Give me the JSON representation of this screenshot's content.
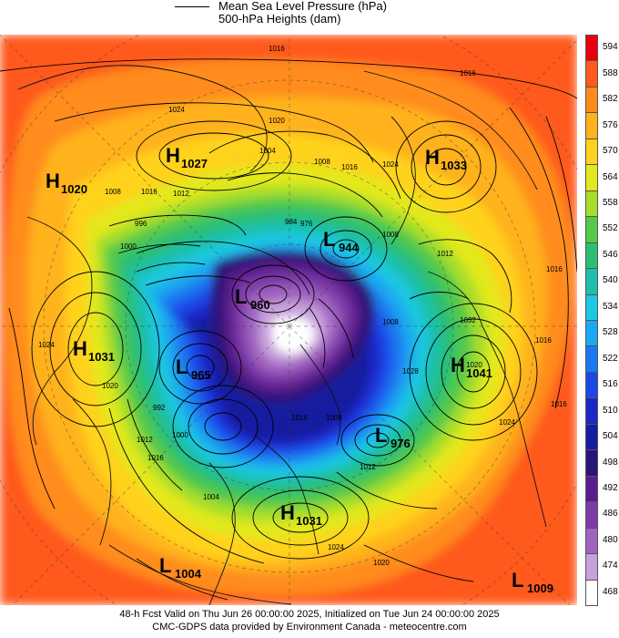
{
  "header": {
    "title_line1": "Mean Sea Level Pressure (hPa)",
    "title_line2": "500-hPa Heights (dam)"
  },
  "footer": {
    "line1": "48-h Fcst Valid on Thu Jun 26 00:00:00 2025, Initialized on Tue Jun 24 00:00:00 2025",
    "line2": "CMC-GDPS data provided by Environment Canada - meteocentre.com"
  },
  "colorbar": {
    "unit": "dam",
    "levels": [
      {
        "label": "594",
        "color": "#e8000b"
      },
      {
        "label": "588",
        "color": "#ff5a1e"
      },
      {
        "label": "582",
        "color": "#ff8c1a"
      },
      {
        "label": "576",
        "color": "#ffb21a"
      },
      {
        "label": "570",
        "color": "#ffd21e"
      },
      {
        "label": "564",
        "color": "#e3e81e"
      },
      {
        "label": "558",
        "color": "#a6de2a"
      },
      {
        "label": "552",
        "color": "#55c94a"
      },
      {
        "label": "546",
        "color": "#2bbf73"
      },
      {
        "label": "540",
        "color": "#1dc0aa"
      },
      {
        "label": "534",
        "color": "#1ec8e0"
      },
      {
        "label": "528",
        "color": "#1aa8f0"
      },
      {
        "label": "522",
        "color": "#1a78f0"
      },
      {
        "label": "516",
        "color": "#1a48e8"
      },
      {
        "label": "510",
        "color": "#1a28c8"
      },
      {
        "label": "504",
        "color": "#141ea0"
      },
      {
        "label": "498",
        "color": "#2a1478"
      },
      {
        "label": "492",
        "color": "#5a1e8c"
      },
      {
        "label": "486",
        "color": "#7e3aa8"
      },
      {
        "label": "480",
        "color": "#a064c0"
      },
      {
        "label": "474",
        "color": "#c8a0dc"
      },
      {
        "label": "468",
        "color": "#ffffff"
      }
    ]
  },
  "systems": [
    {
      "type": "H",
      "value": "1027"
    },
    {
      "type": "H",
      "value": "1020"
    },
    {
      "type": "H",
      "value": "1033"
    },
    {
      "type": "L",
      "value": "944"
    },
    {
      "type": "L",
      "value": "960"
    },
    {
      "type": "H",
      "value": "1031"
    },
    {
      "type": "L",
      "value": "965"
    },
    {
      "type": "H",
      "value": "1041"
    },
    {
      "type": "L",
      "value": "976"
    },
    {
      "type": "H",
      "value": "1031"
    },
    {
      "type": "L",
      "value": "1004"
    },
    {
      "type": "L",
      "value": "1009"
    }
  ],
  "isobar_labels": [
    "1016",
    "1016",
    "1024",
    "1020",
    "1004",
    "1008",
    "1016",
    "1024",
    "1008",
    "1016",
    "1012",
    "996",
    "1000",
    "984",
    "976",
    "1008",
    "1024",
    "1020",
    "1028",
    "1024",
    "1016",
    "1032",
    "1012",
    "1008",
    "1020",
    "1012",
    "1016",
    "1024",
    "1020",
    "1016",
    "1000",
    "992",
    "1004",
    "1012",
    "1016",
    "1016",
    "1008"
  ]
}
